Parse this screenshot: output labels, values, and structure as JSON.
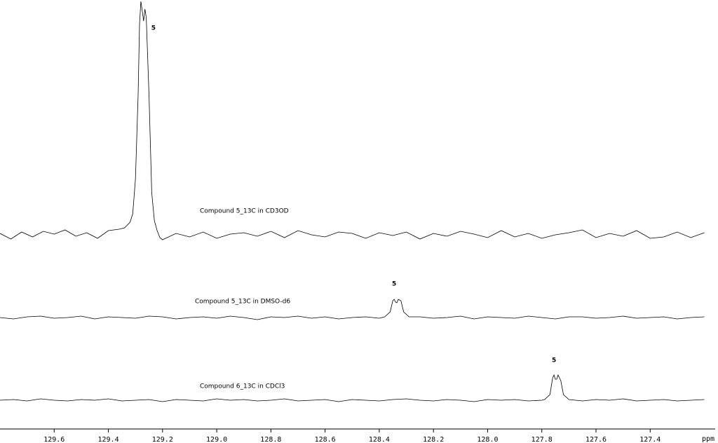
{
  "chart_data": {
    "type": "line",
    "x_label": "ppm",
    "xlim": [
      129.8,
      127.16
    ],
    "xticks": [
      129.6,
      129.4,
      129.2,
      {
        "value": 129,
        "label": "129.0"
      },
      128.8,
      128.6,
      128.4,
      128.2,
      {
        "value": 128,
        "label": "128.0"
      },
      127.8,
      127.6,
      127.4
    ],
    "series": [
      {
        "name": "Compound 5_13C in CD3OD",
        "peak_label": "5",
        "color": "#000000",
        "x": [
          129.8,
          129.76,
          129.72,
          129.68,
          129.64,
          129.6,
          129.56,
          129.52,
          129.48,
          129.44,
          129.4,
          129.36,
          129.34,
          129.32,
          129.31,
          129.3,
          129.29,
          129.285,
          129.28,
          129.275,
          129.27,
          129.265,
          129.26,
          129.25,
          129.24,
          129.23,
          129.22,
          129.21,
          129.2,
          129.15,
          129.1,
          129.05,
          129,
          128.95,
          128.9,
          128.85,
          128.8,
          128.75,
          128.7,
          128.65,
          128.6,
          128.55,
          128.5,
          128.45,
          128.4,
          128.35,
          128.3,
          128.25,
          128.2,
          128.15,
          128.1,
          128.05,
          128,
          127.95,
          127.9,
          127.85,
          127.8,
          127.75,
          127.7,
          127.65,
          127.6,
          127.55,
          127.5,
          127.45,
          127.4,
          127.35,
          127.3,
          127.25,
          127.2
        ],
        "values": [
          2,
          -6,
          4,
          -3,
          5,
          1,
          7,
          -2,
          3,
          -5,
          6,
          8,
          10,
          18,
          30,
          80,
          200,
          300,
          333,
          320,
          305,
          322,
          310,
          200,
          60,
          20,
          6,
          -4,
          -7,
          2,
          -3,
          4,
          -5,
          1,
          3,
          -2,
          5,
          -4,
          6,
          0,
          -3,
          4,
          2,
          -5,
          3,
          -1,
          4,
          -6,
          2,
          -2,
          5,
          1,
          -4,
          6,
          -3,
          2,
          -5,
          0,
          3,
          7,
          -4,
          2,
          -2,
          6,
          -5,
          -3,
          4,
          -4,
          3
        ]
      },
      {
        "name": "Compound 5_13C in DMSO-d6",
        "peak_label": "5",
        "color": "#000000",
        "x": [
          129.8,
          129.75,
          129.7,
          129.65,
          129.6,
          129.55,
          129.5,
          129.45,
          129.4,
          129.35,
          129.3,
          129.25,
          129.2,
          129.15,
          129.1,
          129.05,
          129,
          128.95,
          128.9,
          128.85,
          128.8,
          128.75,
          128.7,
          128.65,
          128.6,
          128.55,
          128.5,
          128.45,
          128.4,
          128.38,
          128.36,
          128.35,
          128.345,
          128.34,
          128.335,
          128.33,
          128.32,
          128.31,
          128.29,
          128.25,
          128.2,
          128.15,
          128.1,
          128.05,
          128,
          127.95,
          127.9,
          127.85,
          127.8,
          127.75,
          127.7,
          127.65,
          127.6,
          127.55,
          127.5,
          127.45,
          127.4,
          127.35,
          127.3,
          127.25,
          127.2
        ],
        "values": [
          0,
          -2,
          1,
          2,
          -1,
          0,
          2,
          -2,
          1,
          0,
          -1,
          2,
          1,
          -2,
          0,
          1,
          -1,
          2,
          0,
          -3,
          1,
          0,
          2,
          -1,
          1,
          -2,
          0,
          1,
          -1,
          1,
          8,
          24,
          26,
          22,
          21,
          26,
          24,
          8,
          1,
          1,
          -1,
          0,
          2,
          -2,
          1,
          0,
          -1,
          2,
          0,
          -2,
          1,
          1,
          -1,
          0,
          2,
          -1,
          0,
          1,
          -2,
          0,
          1
        ]
      },
      {
        "name": "Compound 6_13C in CDCl3",
        "peak_label": "5",
        "color": "#000000",
        "x": [
          129.8,
          129.75,
          129.7,
          129.65,
          129.6,
          129.55,
          129.5,
          129.45,
          129.4,
          129.35,
          129.3,
          129.25,
          129.2,
          129.15,
          129.1,
          129.05,
          129,
          128.95,
          128.9,
          128.85,
          128.8,
          128.75,
          128.7,
          128.65,
          128.6,
          128.55,
          128.5,
          128.45,
          128.4,
          128.35,
          128.3,
          128.25,
          128.2,
          128.15,
          128.1,
          128.05,
          128,
          127.95,
          127.9,
          127.85,
          127.8,
          127.79,
          127.77,
          127.76,
          127.755,
          127.75,
          127.745,
          127.74,
          127.73,
          127.72,
          127.7,
          127.65,
          127.6,
          127.55,
          127.5,
          127.45,
          127.4,
          127.35,
          127.3,
          127.25,
          127.2
        ],
        "values": [
          0,
          1,
          -1,
          2,
          0,
          -1,
          1,
          0,
          2,
          -1,
          0,
          1,
          -2,
          1,
          0,
          -1,
          2,
          0,
          1,
          -1,
          0,
          2,
          -1,
          0,
          1,
          -2,
          1,
          0,
          -1,
          1,
          2,
          0,
          -1,
          1,
          0,
          -2,
          1,
          0,
          1,
          -1,
          0,
          1,
          8,
          32,
          36,
          30,
          30,
          36,
          28,
          8,
          1,
          -1,
          1,
          0,
          2,
          -1,
          0,
          1,
          -1,
          0,
          1
        ]
      }
    ]
  }
}
